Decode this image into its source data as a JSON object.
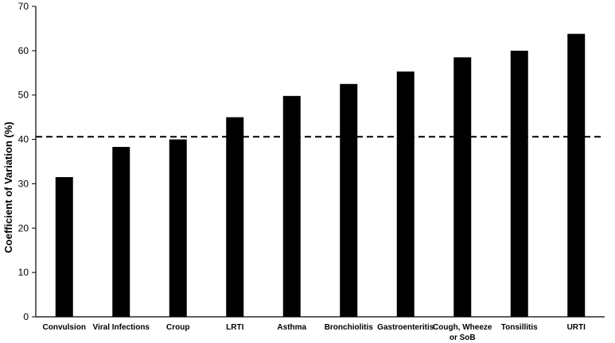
{
  "chart_data": {
    "type": "bar",
    "title": "",
    "xlabel": "",
    "ylabel": "Coefficient of Variation (%)",
    "ylim": [
      0,
      70
    ],
    "yticks": [
      0,
      10,
      20,
      30,
      40,
      50,
      60,
      70
    ],
    "categories": [
      [
        "Convulsion"
      ],
      [
        "Viral Infections"
      ],
      [
        "Croup"
      ],
      [
        "LRTI"
      ],
      [
        "Asthma"
      ],
      [
        "Bronchiolitis"
      ],
      [
        "Gastroenteritis"
      ],
      [
        "Cough, Wheeze",
        "or SoB"
      ],
      [
        "Tonsillitis"
      ],
      [
        "URTI"
      ]
    ],
    "values": [
      31.5,
      38.3,
      40.0,
      45.0,
      49.8,
      52.5,
      55.3,
      58.5,
      60.0,
      63.8
    ],
    "reference_line": {
      "value": 40.6,
      "style": "dashed"
    },
    "grid": false,
    "colors": {
      "bar": "#000000",
      "axis": "#000000",
      "reference_line": "#000000"
    }
  }
}
